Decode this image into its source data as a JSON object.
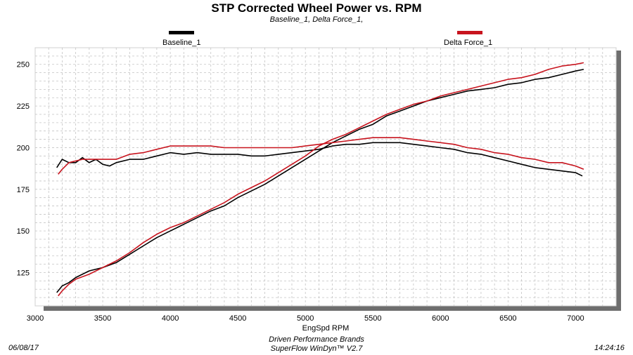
{
  "chart_data": {
    "type": "line",
    "title": "STP Corrected Wheel Power vs. RPM",
    "subtitle": "Baseline_1, Delta Force_1,",
    "xlabel": "EngSpd  RPM",
    "ylabel": "",
    "xlim": [
      3000,
      7300
    ],
    "ylim": [
      105,
      260
    ],
    "x_ticks": [
      3000,
      3500,
      4000,
      4500,
      5000,
      5500,
      6000,
      6500,
      7000
    ],
    "y_ticks": [
      125,
      150,
      175,
      200,
      225,
      250
    ],
    "grid": true,
    "legend": "top",
    "series": [
      {
        "name": "Baseline_1",
        "color": "#000000",
        "kind": "flat",
        "points": [
          [
            3160,
            188
          ],
          [
            3200,
            193
          ],
          [
            3250,
            191
          ],
          [
            3300,
            191
          ],
          [
            3350,
            194
          ],
          [
            3400,
            191
          ],
          [
            3450,
            193
          ],
          [
            3500,
            190
          ],
          [
            3550,
            189
          ],
          [
            3600,
            191
          ],
          [
            3700,
            193
          ],
          [
            3800,
            193
          ],
          [
            3900,
            195
          ],
          [
            4000,
            197
          ],
          [
            4100,
            196
          ],
          [
            4200,
            197
          ],
          [
            4300,
            196
          ],
          [
            4400,
            196
          ],
          [
            4500,
            196
          ],
          [
            4600,
            195
          ],
          [
            4700,
            195
          ],
          [
            4800,
            196
          ],
          [
            4900,
            197
          ],
          [
            5000,
            198
          ],
          [
            5100,
            199
          ],
          [
            5200,
            201
          ],
          [
            5300,
            202
          ],
          [
            5400,
            202
          ],
          [
            5500,
            203
          ],
          [
            5600,
            203
          ],
          [
            5700,
            203
          ],
          [
            5800,
            202
          ],
          [
            5900,
            201
          ],
          [
            6000,
            200
          ],
          [
            6100,
            199
          ],
          [
            6200,
            197
          ],
          [
            6300,
            196
          ],
          [
            6400,
            194
          ],
          [
            6500,
            192
          ],
          [
            6600,
            190
          ],
          [
            6700,
            188
          ],
          [
            6800,
            187
          ],
          [
            6900,
            186
          ],
          [
            7000,
            185
          ],
          [
            7050,
            183
          ]
        ]
      },
      {
        "name": "Baseline_1",
        "color": "#000000",
        "kind": "rising",
        "points": [
          [
            3160,
            113
          ],
          [
            3200,
            117
          ],
          [
            3250,
            119
          ],
          [
            3300,
            122
          ],
          [
            3400,
            126
          ],
          [
            3500,
            128
          ],
          [
            3600,
            131
          ],
          [
            3700,
            136
          ],
          [
            3800,
            141
          ],
          [
            3900,
            146
          ],
          [
            4000,
            150
          ],
          [
            4100,
            154
          ],
          [
            4200,
            158
          ],
          [
            4300,
            162
          ],
          [
            4400,
            165
          ],
          [
            4500,
            170
          ],
          [
            4600,
            174
          ],
          [
            4700,
            178
          ],
          [
            4800,
            183
          ],
          [
            4900,
            188
          ],
          [
            5000,
            193
          ],
          [
            5100,
            198
          ],
          [
            5200,
            203
          ],
          [
            5300,
            207
          ],
          [
            5400,
            211
          ],
          [
            5500,
            214
          ],
          [
            5600,
            219
          ],
          [
            5700,
            222
          ],
          [
            5800,
            225
          ],
          [
            5900,
            228
          ],
          [
            6000,
            230
          ],
          [
            6100,
            232
          ],
          [
            6200,
            234
          ],
          [
            6300,
            235
          ],
          [
            6400,
            236
          ],
          [
            6500,
            238
          ],
          [
            6600,
            239
          ],
          [
            6700,
            241
          ],
          [
            6800,
            242
          ],
          [
            6900,
            244
          ],
          [
            7000,
            246
          ],
          [
            7060,
            247
          ]
        ]
      },
      {
        "name": "Delta Force_1",
        "color": "#c8141e",
        "kind": "flat",
        "points": [
          [
            3170,
            184
          ],
          [
            3200,
            187
          ],
          [
            3250,
            191
          ],
          [
            3300,
            192
          ],
          [
            3350,
            193
          ],
          [
            3400,
            193
          ],
          [
            3450,
            193
          ],
          [
            3500,
            193
          ],
          [
            3600,
            193
          ],
          [
            3700,
            196
          ],
          [
            3800,
            197
          ],
          [
            3900,
            199
          ],
          [
            4000,
            201
          ],
          [
            4100,
            201
          ],
          [
            4200,
            201
          ],
          [
            4300,
            201
          ],
          [
            4400,
            200
          ],
          [
            4500,
            200
          ],
          [
            4600,
            200
          ],
          [
            4700,
            200
          ],
          [
            4800,
            200
          ],
          [
            4900,
            200
          ],
          [
            5000,
            201
          ],
          [
            5100,
            202
          ],
          [
            5200,
            203
          ],
          [
            5300,
            204
          ],
          [
            5400,
            205
          ],
          [
            5500,
            206
          ],
          [
            5600,
            206
          ],
          [
            5700,
            206
          ],
          [
            5800,
            205
          ],
          [
            5900,
            204
          ],
          [
            6000,
            203
          ],
          [
            6100,
            202
          ],
          [
            6200,
            200
          ],
          [
            6300,
            199
          ],
          [
            6400,
            197
          ],
          [
            6500,
            196
          ],
          [
            6600,
            194
          ],
          [
            6700,
            193
          ],
          [
            6800,
            191
          ],
          [
            6900,
            191
          ],
          [
            7000,
            189
          ],
          [
            7060,
            187
          ]
        ]
      },
      {
        "name": "Delta Force_1",
        "color": "#c8141e",
        "kind": "rising",
        "points": [
          [
            3170,
            111
          ],
          [
            3200,
            114
          ],
          [
            3250,
            118
          ],
          [
            3300,
            121
          ],
          [
            3400,
            124
          ],
          [
            3500,
            128
          ],
          [
            3600,
            132
          ],
          [
            3700,
            137
          ],
          [
            3800,
            143
          ],
          [
            3900,
            148
          ],
          [
            4000,
            152
          ],
          [
            4100,
            155
          ],
          [
            4200,
            159
          ],
          [
            4300,
            163
          ],
          [
            4400,
            167
          ],
          [
            4500,
            172
          ],
          [
            4600,
            176
          ],
          [
            4700,
            180
          ],
          [
            4800,
            185
          ],
          [
            4900,
            190
          ],
          [
            5000,
            195
          ],
          [
            5100,
            201
          ],
          [
            5200,
            205
          ],
          [
            5300,
            208
          ],
          [
            5400,
            212
          ],
          [
            5500,
            216
          ],
          [
            5600,
            220
          ],
          [
            5700,
            223
          ],
          [
            5800,
            226
          ],
          [
            5900,
            228
          ],
          [
            6000,
            231
          ],
          [
            6100,
            233
          ],
          [
            6200,
            235
          ],
          [
            6300,
            237
          ],
          [
            6400,
            239
          ],
          [
            6500,
            241
          ],
          [
            6600,
            242
          ],
          [
            6700,
            244
          ],
          [
            6800,
            247
          ],
          [
            6900,
            249
          ],
          [
            7000,
            250
          ],
          [
            7060,
            251
          ]
        ]
      }
    ]
  },
  "legend": {
    "baseline_label": "Baseline_1",
    "delta_label": "Delta Force_1"
  },
  "footer": {
    "date": "06/08/17",
    "company": "Driven Performance Brands",
    "software": "SuperFlow WinDyn™ V2.7",
    "time": "14:24:16"
  }
}
